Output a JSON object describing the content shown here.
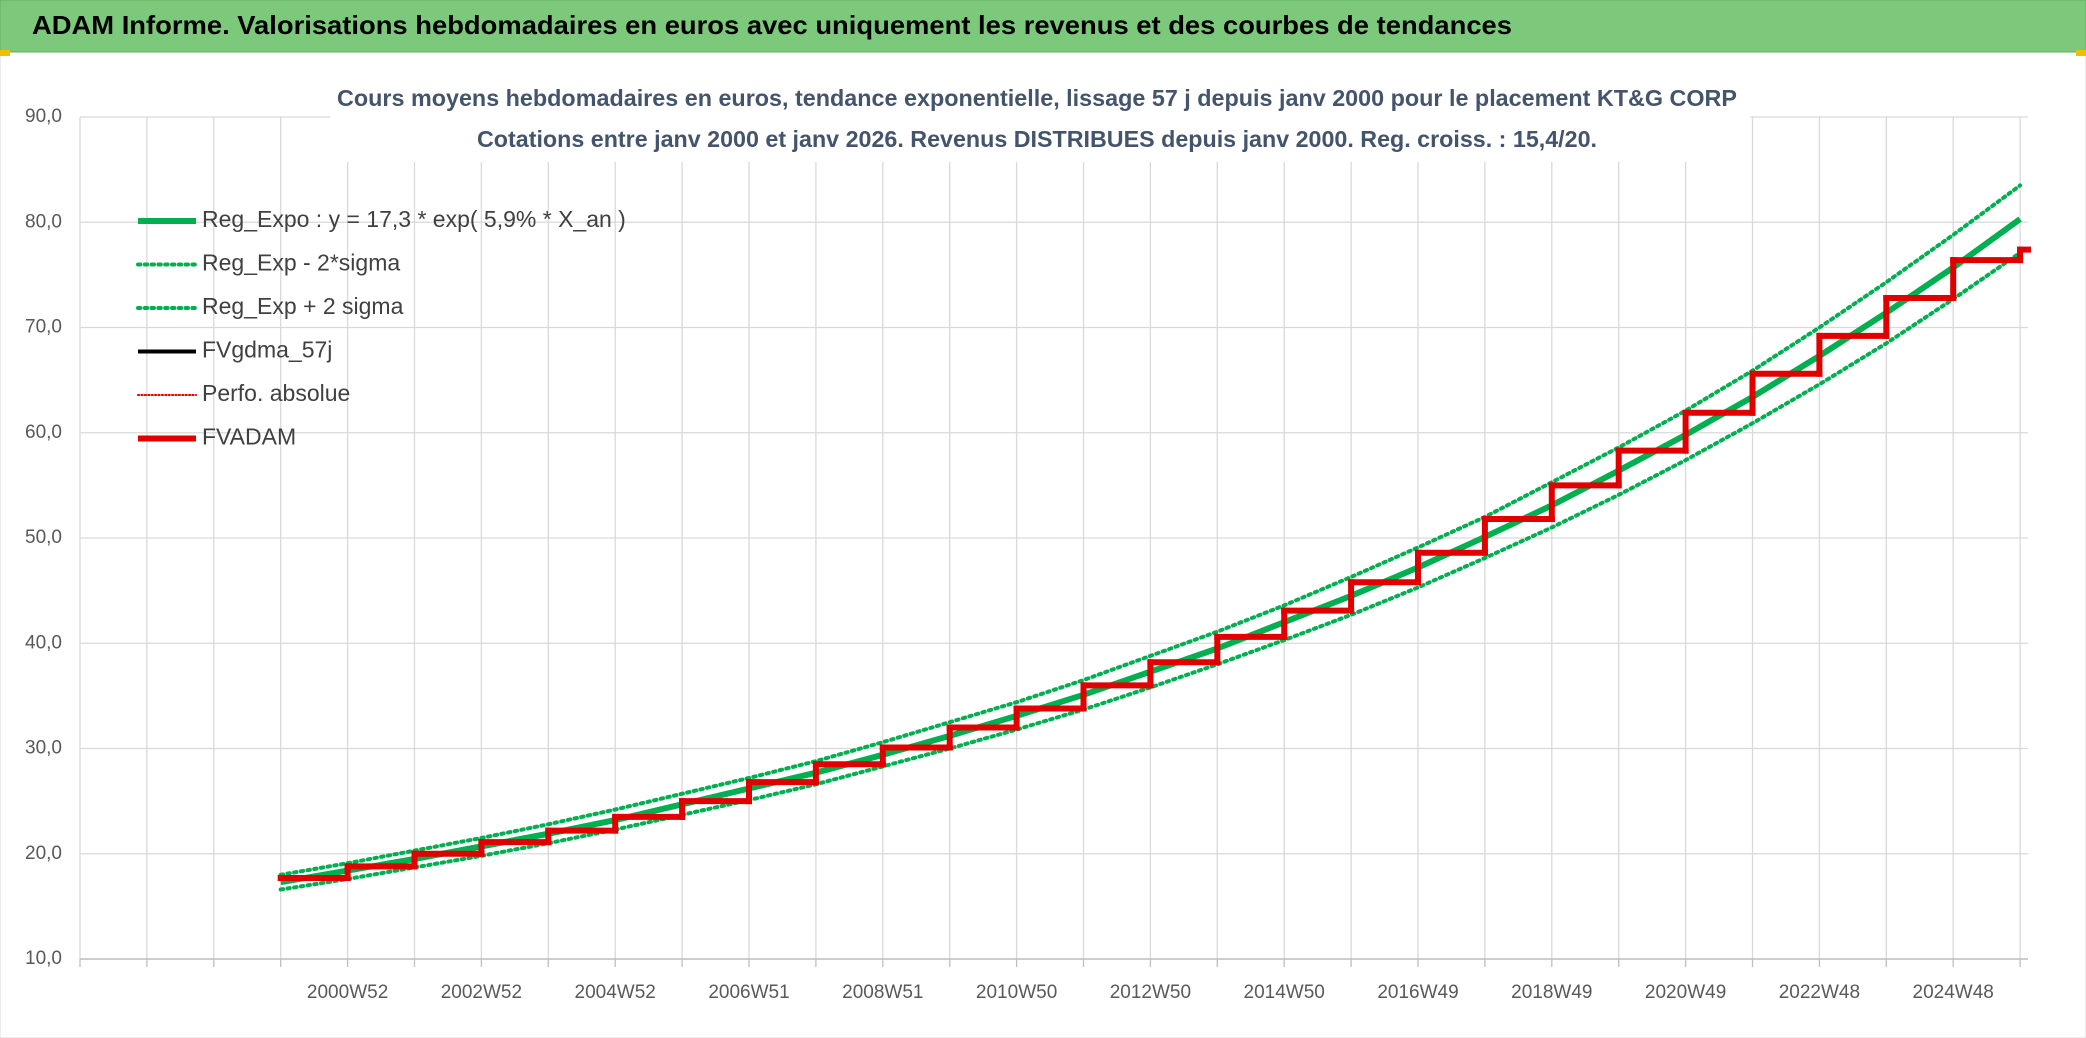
{
  "header": {
    "title": "ADAM Informe. Valorisations hebdomadaires en euros avec uniquement les revenus et des courbes de tendances"
  },
  "chart_data": {
    "type": "line",
    "title": "Cours moyens hebdomadaires en euros, tendance exponentielle, lissage 57 j depuis janv 2000 pour le placement KT&G CORP",
    "subtitle": "Cotations entre janv 2000 et janv 2026. Revenus DISTRIBUES depuis janv 2000. Reg. croiss. : 15,4/20.",
    "categories": [
      null,
      null,
      null,
      null,
      "2000W52",
      null,
      "2002W52",
      null,
      "2004W52",
      null,
      "2006W51",
      null,
      "2008W51",
      null,
      "2010W50",
      null,
      "2012W50",
      null,
      "2014W50",
      null,
      "2016W49",
      null,
      "2018W49",
      null,
      "2020W49",
      null,
      "2022W48",
      null,
      "2024W48",
      null
    ],
    "ylim": [
      10,
      90
    ],
    "yticks": [
      {
        "value": 10,
        "label": "10,0"
      },
      {
        "value": 20,
        "label": "20,0"
      },
      {
        "value": 30,
        "label": "30,0"
      },
      {
        "value": 40,
        "label": "40,0"
      },
      {
        "value": 50,
        "label": "50,0"
      },
      {
        "value": 60,
        "label": "60,0"
      },
      {
        "value": 70,
        "label": "70,0"
      },
      {
        "value": 80,
        "label": "80,0"
      },
      {
        "value": 90,
        "label": "90,0"
      }
    ],
    "grid": true,
    "legend": "upper left",
    "series": [
      {
        "name": "Reg_Expo : y = 17,3 * exp( 5,9% *  X_an )",
        "color": "#00b050",
        "dash": "solid",
        "width": 6,
        "step": false,
        "values": [
          null,
          null,
          null,
          17.3,
          18.4,
          19.5,
          20.7,
          21.9,
          23.2,
          24.7,
          26.2,
          27.7,
          29.4,
          31.2,
          33.1,
          35.1,
          37.3,
          39.5,
          42.0,
          44.5,
          47.2,
          50.1,
          53.1,
          56.4,
          59.8,
          63.4,
          67.3,
          71.4,
          75.7,
          80.3
        ]
      },
      {
        "name": "Reg_Exp - 2*sigma",
        "color": "#00b050",
        "dash": "dotted",
        "width": 4,
        "step": false,
        "values": [
          null,
          null,
          null,
          16.6,
          17.6,
          18.7,
          19.8,
          21.0,
          22.3,
          23.7,
          25.1,
          26.6,
          28.3,
          30.0,
          31.8,
          33.7,
          35.8,
          38.0,
          40.3,
          42.7,
          45.3,
          48.1,
          51.0,
          54.1,
          57.4,
          60.9,
          64.6,
          68.5,
          72.7,
          77.1
        ]
      },
      {
        "name": "Reg_Exp + 2 sigma",
        "color": "#00b050",
        "dash": "dotted",
        "width": 4,
        "step": false,
        "values": [
          null,
          null,
          null,
          18.0,
          19.1,
          20.3,
          21.5,
          22.8,
          24.2,
          25.7,
          27.2,
          28.8,
          30.6,
          32.5,
          34.4,
          36.5,
          38.8,
          41.1,
          43.6,
          46.3,
          49.1,
          52.0,
          55.3,
          58.6,
          62.1,
          65.9,
          70.0,
          74.3,
          78.8,
          83.5
        ]
      },
      {
        "name": "FVgdma_57j",
        "color": "#000000",
        "dash": "solid",
        "width": 4,
        "step": true,
        "values": [
          null,
          null,
          null,
          17.7,
          18.8,
          20.0,
          21.1,
          22.2,
          23.5,
          25.0,
          26.8,
          28.5,
          30.1,
          32.0,
          33.8,
          36.0,
          38.2,
          40.6,
          43.1,
          45.8,
          48.6,
          51.8,
          55.0,
          58.3,
          61.9,
          65.6,
          69.2,
          72.8,
          76.4,
          77.4
        ]
      },
      {
        "name": "Perfo. absolue",
        "color": "#e00000",
        "dash": "dotted",
        "width": 2,
        "step": true,
        "values": [
          null,
          null,
          null,
          17.7,
          18.8,
          20.0,
          21.1,
          22.2,
          23.5,
          25.0,
          26.8,
          28.5,
          30.1,
          32.0,
          33.8,
          36.0,
          38.2,
          40.6,
          43.1,
          45.8,
          48.6,
          51.8,
          55.0,
          58.3,
          61.9,
          65.6,
          69.2,
          72.8,
          76.4,
          77.4
        ]
      },
      {
        "name": "FVADAM",
        "color": "#e00000",
        "dash": "solid",
        "width": 6,
        "step": true,
        "values": [
          null,
          null,
          null,
          17.7,
          18.8,
          20.0,
          21.1,
          22.2,
          23.5,
          25.0,
          26.8,
          28.5,
          30.1,
          32.0,
          33.8,
          36.0,
          38.2,
          40.6,
          43.1,
          45.8,
          48.6,
          51.8,
          55.0,
          58.3,
          61.9,
          65.6,
          69.2,
          72.8,
          76.4,
          77.4
        ]
      }
    ]
  }
}
